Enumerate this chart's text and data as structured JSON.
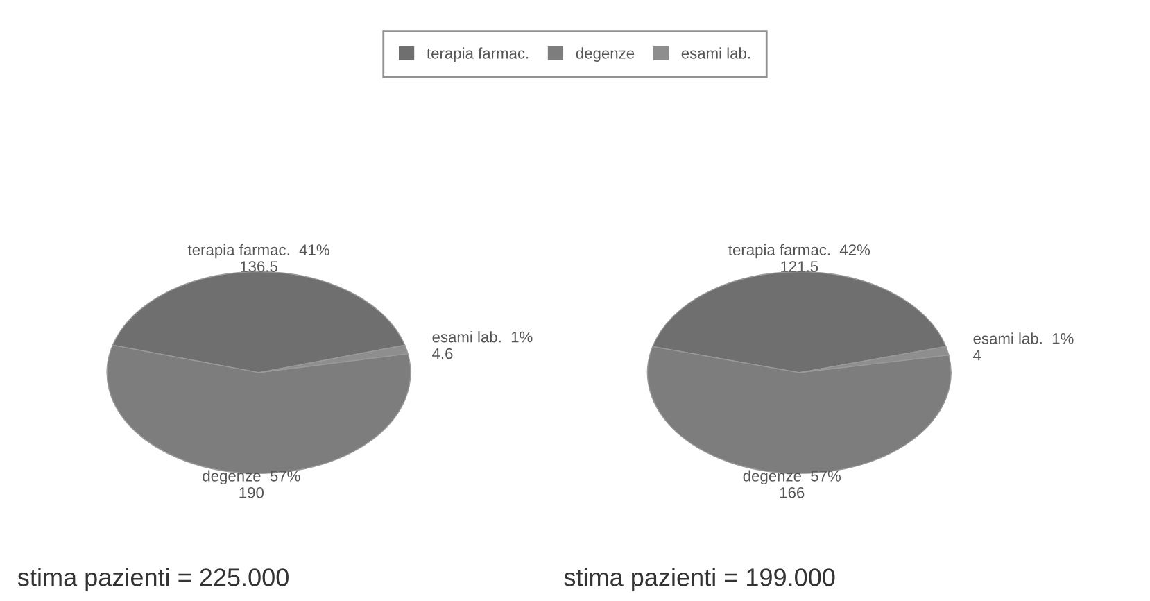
{
  "chart_data": [
    {
      "type": "pie",
      "categories": [
        "terapia farmac.",
        "degenze",
        "esami lab."
      ],
      "values": [
        136.5,
        190,
        4.6
      ],
      "value_labels": [
        "41%\n136.5",
        "57%\n190",
        "1%\n4.6"
      ],
      "colors": [
        "#6f6f6f",
        "#7d7d7d",
        "#8e8e8e"
      ],
      "subtitle": "stima pazienti = 225.000",
      "legend": "top"
    },
    {
      "type": "pie",
      "categories": [
        "terapia farmac.",
        "degenze",
        "esami lab."
      ],
      "values": [
        121.5,
        166,
        4
      ],
      "value_labels": [
        "42%\n121.5",
        "57%\n166",
        "1%\n4"
      ],
      "colors": [
        "#6f6f6f",
        "#7d7d7d",
        "#8e8e8e"
      ],
      "subtitle": "stima pazienti = 199.000"
    }
  ]
}
